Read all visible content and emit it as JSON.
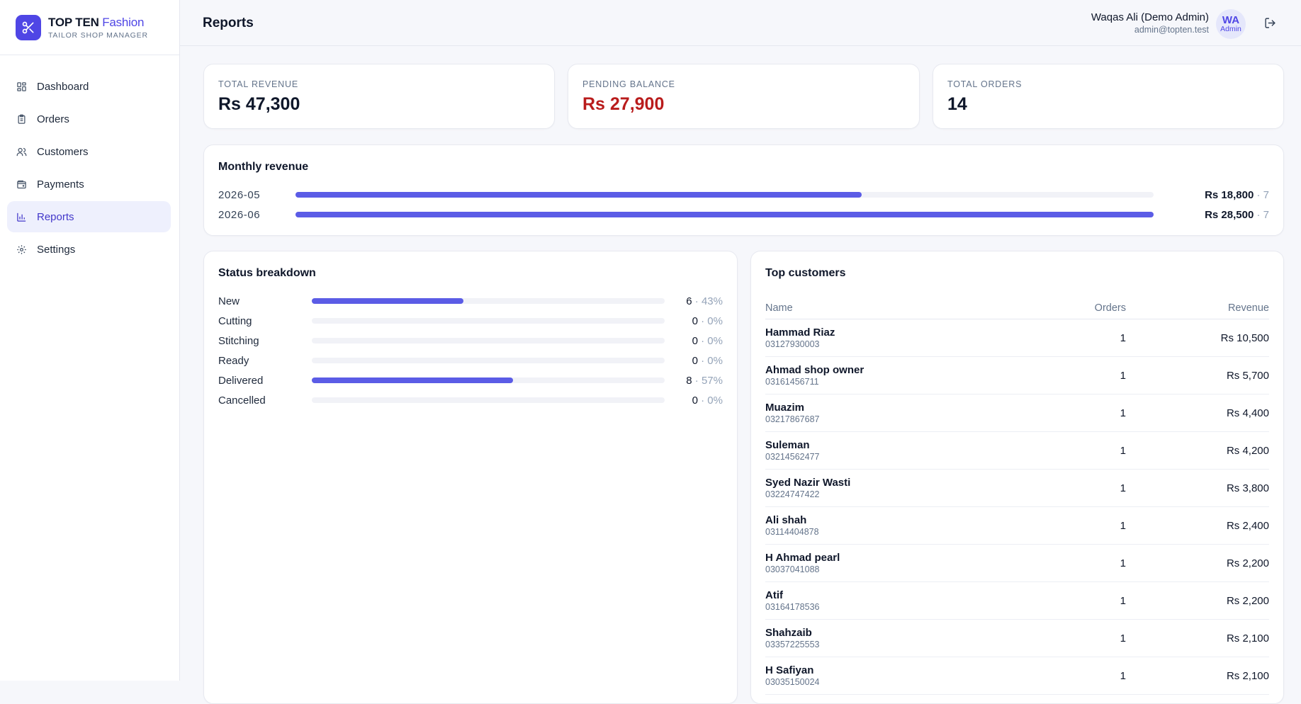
{
  "brand": {
    "name_main": "TOP TEN",
    "name_accent": "Fashion",
    "subtitle": "TAILOR SHOP MANAGER"
  },
  "sidebar": {
    "items": [
      {
        "label": "Dashboard",
        "icon": "dashboard-icon"
      },
      {
        "label": "Orders",
        "icon": "clipboard-icon"
      },
      {
        "label": "Customers",
        "icon": "users-icon"
      },
      {
        "label": "Payments",
        "icon": "wallet-icon"
      },
      {
        "label": "Reports",
        "icon": "bar-chart-icon",
        "active": true
      },
      {
        "label": "Settings",
        "icon": "gear-icon"
      }
    ]
  },
  "header": {
    "title": "Reports",
    "user_name": "Waqas Ali (Demo Admin)",
    "user_email": "admin@topten.test",
    "avatar_initials": "WA",
    "avatar_role": "Admin"
  },
  "stats": [
    {
      "label": "TOTAL REVENUE",
      "value": "Rs 47,300"
    },
    {
      "label": "PENDING BALANCE",
      "value": "Rs 27,900"
    },
    {
      "label": "TOTAL ORDERS",
      "value": "14"
    }
  ],
  "monthly_revenue": {
    "title": "Monthly revenue",
    "rows": [
      {
        "month": "2026-05",
        "amount": "Rs 18,800",
        "count": "· 7",
        "fill": 0.66
      },
      {
        "month": "2026-06",
        "amount": "Rs 28,500",
        "count": "· 7",
        "fill": 1.0
      }
    ]
  },
  "status_breakdown": {
    "title": "Status breakdown",
    "rows": [
      {
        "label": "New",
        "count": "6",
        "pct": "· 43%",
        "fill": 0.43
      },
      {
        "label": "Cutting",
        "count": "0",
        "pct": "· 0%",
        "fill": 0
      },
      {
        "label": "Stitching",
        "count": "0",
        "pct": "· 0%",
        "fill": 0
      },
      {
        "label": "Ready",
        "count": "0",
        "pct": "· 0%",
        "fill": 0
      },
      {
        "label": "Delivered",
        "count": "8",
        "pct": "· 57%",
        "fill": 0.57
      },
      {
        "label": "Cancelled",
        "count": "0",
        "pct": "· 0%",
        "fill": 0
      }
    ]
  },
  "top_customers": {
    "title": "Top customers",
    "columns": {
      "name": "Name",
      "orders": "Orders",
      "revenue": "Revenue"
    },
    "rows": [
      {
        "name": "Hammad Riaz",
        "phone": "03127930003",
        "orders": "1",
        "revenue": "Rs 10,500"
      },
      {
        "name": "Ahmad shop owner",
        "phone": "03161456711",
        "orders": "1",
        "revenue": "Rs 5,700"
      },
      {
        "name": "Muazim",
        "phone": "03217867687",
        "orders": "1",
        "revenue": "Rs 4,400"
      },
      {
        "name": "Suleman",
        "phone": "03214562477",
        "orders": "1",
        "revenue": "Rs 4,200"
      },
      {
        "name": "Syed Nazir Wasti",
        "phone": "03224747422",
        "orders": "1",
        "revenue": "Rs 3,800"
      },
      {
        "name": "Ali shah",
        "phone": "03114404878",
        "orders": "1",
        "revenue": "Rs 2,400"
      },
      {
        "name": "H Ahmad pearl",
        "phone": "03037041088",
        "orders": "1",
        "revenue": "Rs 2,200"
      },
      {
        "name": "Atif",
        "phone": "03164178536",
        "orders": "1",
        "revenue": "Rs 2,200"
      },
      {
        "name": "Shahzaib",
        "phone": "03357225553",
        "orders": "1",
        "revenue": "Rs 2,100"
      },
      {
        "name": "H Safiyan",
        "phone": "03035150024",
        "orders": "1",
        "revenue": "Rs 2,100"
      }
    ]
  },
  "colors": {
    "accent": "#4f46e5",
    "bar": "#5b5ce6",
    "danger": "#b91c1c"
  }
}
